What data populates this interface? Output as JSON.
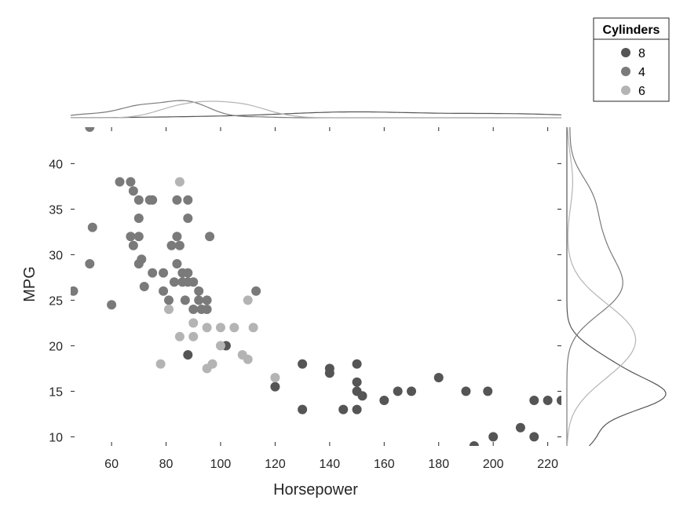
{
  "chart_data": {
    "type": "scatter",
    "xlabel": "Horsepower",
    "ylabel": "MPG",
    "xlim": [
      45,
      225
    ],
    "ylim": [
      9,
      44
    ],
    "xticks": [
      60,
      80,
      100,
      120,
      140,
      160,
      180,
      200,
      220
    ],
    "yticks": [
      10,
      15,
      20,
      25,
      30,
      35,
      40
    ],
    "grid": false,
    "marginal_plots": "kernel density (top: horsepower, right: MPG)",
    "legend": {
      "title": "Cylinders",
      "placement": "top-right",
      "entries": [
        {
          "label": "8",
          "color": "#555555"
        },
        {
          "label": "4",
          "color": "#7a7a7a"
        },
        {
          "label": "6",
          "color": "#b4b4b4"
        }
      ]
    },
    "series": [
      {
        "name": "8",
        "color": "#555555",
        "points": [
          [
            102,
            20
          ],
          [
            88,
            19
          ],
          [
            120,
            15.5
          ],
          [
            130,
            18
          ],
          [
            130,
            13
          ],
          [
            140,
            17.5
          ],
          [
            140,
            17
          ],
          [
            145,
            13
          ],
          [
            150,
            18
          ],
          [
            150,
            16
          ],
          [
            150,
            15
          ],
          [
            150,
            13
          ],
          [
            152,
            14.5
          ],
          [
            160,
            14
          ],
          [
            165,
            15
          ],
          [
            170,
            15
          ],
          [
            180,
            16.5
          ],
          [
            190,
            15
          ],
          [
            198,
            15
          ],
          [
            193,
            9
          ],
          [
            200,
            10
          ],
          [
            210,
            11
          ],
          [
            215,
            10
          ],
          [
            215,
            14
          ],
          [
            220,
            14
          ],
          [
            225,
            14
          ]
        ]
      },
      {
        "name": "4",
        "color": "#7a7a7a",
        "points": [
          [
            46,
            26
          ],
          [
            52,
            29
          ],
          [
            52,
            44
          ],
          [
            53,
            33
          ],
          [
            60,
            24.5
          ],
          [
            63,
            38
          ],
          [
            67,
            38
          ],
          [
            68,
            37
          ],
          [
            67,
            32
          ],
          [
            68,
            31
          ],
          [
            70,
            36
          ],
          [
            70,
            34
          ],
          [
            70,
            32
          ],
          [
            70,
            29
          ],
          [
            71,
            29.5
          ],
          [
            72,
            26.5
          ],
          [
            74,
            36
          ],
          [
            75,
            36
          ],
          [
            75,
            28
          ],
          [
            79,
            28
          ],
          [
            79,
            26
          ],
          [
            81,
            25
          ],
          [
            82,
            31
          ],
          [
            83,
            27
          ],
          [
            84,
            32
          ],
          [
            84,
            29
          ],
          [
            84,
            36
          ],
          [
            85,
            31
          ],
          [
            86,
            28
          ],
          [
            86,
            27
          ],
          [
            87,
            25
          ],
          [
            88,
            36
          ],
          [
            88,
            34
          ],
          [
            88,
            28
          ],
          [
            88,
            27
          ],
          [
            90,
            27
          ],
          [
            90,
            24
          ],
          [
            92,
            26
          ],
          [
            92,
            25
          ],
          [
            93,
            24
          ],
          [
            95,
            25
          ],
          [
            95,
            24
          ],
          [
            96,
            32
          ],
          [
            113,
            26
          ]
        ]
      },
      {
        "name": "6",
        "color": "#b4b4b4",
        "points": [
          [
            78,
            18
          ],
          [
            81,
            24
          ],
          [
            85,
            38
          ],
          [
            85,
            21
          ],
          [
            90,
            22.5
          ],
          [
            90,
            21
          ],
          [
            95,
            22
          ],
          [
            95,
            17.5
          ],
          [
            97,
            18
          ],
          [
            100,
            22
          ],
          [
            100,
            20
          ],
          [
            105,
            22
          ],
          [
            108,
            19
          ],
          [
            110,
            25
          ],
          [
            110,
            18.5
          ],
          [
            112,
            22
          ],
          [
            120,
            16.5
          ]
        ]
      }
    ]
  }
}
